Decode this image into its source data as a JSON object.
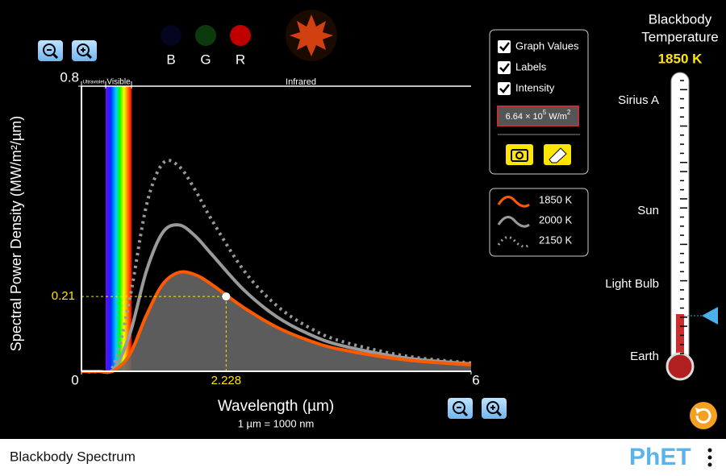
{
  "header": {
    "title_lines": [
      "Blackbody",
      "Temperature"
    ],
    "temperature": "1850 K"
  },
  "color_indicators": [
    "B",
    "G",
    "R"
  ],
  "chart_data": {
    "type": "line",
    "y_label": "Spectral Power Density (MW/m²/µm)",
    "x_label": "Wavelength (µm)",
    "x_note": "1 µm  =  1000 nm",
    "region_labels": [
      "Ultraviolet",
      "Visible",
      "Infrared"
    ],
    "x": [
      0,
      0.25,
      0.5,
      0.75,
      1,
      1.25,
      1.5,
      1.75,
      2,
      2.5,
      3,
      3.5,
      4,
      5,
      6
    ],
    "series": [
      {
        "name": "1850 K",
        "color": "#ff5a00",
        "style": "solid",
        "fill": "#666666",
        "values": [
          0,
          0,
          0.0021,
          0.0494,
          0.157,
          0.244,
          0.2774,
          0.271,
          0.2444,
          0.1787,
          0.1246,
          0.0866,
          0.061,
          0.032,
          0.0181
        ]
      },
      {
        "name": "2000 K",
        "color": "#9a9a9a",
        "style": "solid",
        "values": [
          0,
          0,
          0.0067,
          0.1076,
          0.2813,
          0.389,
          0.4106,
          0.38,
          0.3294,
          0.2284,
          0.154,
          0.1046,
          0.0725,
          0.0372,
          0.0208
        ]
      },
      {
        "name": "2150 K",
        "color": "#9a9a9a",
        "style": "dotted",
        "values": [
          0,
          0,
          0.0184,
          0.21,
          0.4651,
          0.5827,
          0.5756,
          0.509,
          0.4268,
          0.283,
          0.1853,
          0.1235,
          0.0844,
          0.0426,
          0.0235
        ]
      }
    ],
    "xlim": [
      0,
      6
    ],
    "xticks": [
      0,
      6
    ],
    "ylim": [
      0,
      0.8
    ],
    "yticks": [
      0.8
    ],
    "marker": {
      "x": 2.228,
      "y": 0.21
    }
  },
  "controls": {
    "checkboxes": [
      "Graph Values",
      "Labels",
      "Intensity"
    ],
    "intensity": {
      "mantissa": "6.64 × 10",
      "exponent": "5",
      "unit": " W/m",
      "unit_exponent": "2"
    }
  },
  "thermometer": {
    "labels": [
      "Sirius A",
      "Sun",
      "Light Bulb",
      "Earth"
    ]
  },
  "footer": {
    "title": "Blackbody Spectrum",
    "logo": "PhET"
  }
}
